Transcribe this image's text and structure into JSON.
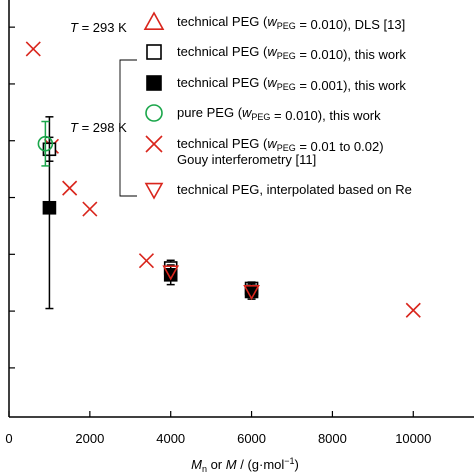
{
  "chart_data": {
    "type": "scatter",
    "xlabel": {
      "prefix": "M",
      "prefix_sub": "n",
      "rest": " or ",
      "italic2": "M",
      "unit": " / (g·mol",
      "unit_sup": "−1",
      "unit_end": ")"
    },
    "xlim": [
      0,
      11700
    ],
    "ylim": [
      0,
      1
    ],
    "x_ticks": [
      0,
      2000,
      4000,
      6000,
      8000,
      10000
    ],
    "x_tick_labels": [
      "0",
      "2000",
      "4000",
      "6000",
      "8000",
      "10000"
    ],
    "y_tick_positions": [
      0.115,
      0.248,
      0.381,
      0.514,
      0.647,
      0.78,
      0.913
    ],
    "grid": false,
    "legend_placement": "top-right",
    "temperature_labels": [
      {
        "var": "T",
        "text": " = 293 K",
        "value": 293
      },
      {
        "var": "T",
        "text": " = 298 K",
        "value": 298
      }
    ],
    "legend": [
      {
        "marker": "triangle-up-open",
        "color": "#d9251c",
        "parts": [
          {
            "t": "technical PEG ("
          },
          {
            "t": "w",
            "i": true
          },
          {
            "t": "PEG",
            "sub": true
          },
          {
            "t": " = 0.010), DLS [13]"
          }
        ]
      },
      {
        "marker": "square-open",
        "color": "#000000",
        "parts": [
          {
            "t": "technical PEG ("
          },
          {
            "t": "w",
            "i": true
          },
          {
            "t": "PEG",
            "sub": true
          },
          {
            "t": " = 0.010), this work"
          }
        ]
      },
      {
        "marker": "square-filled",
        "color": "#000000",
        "parts": [
          {
            "t": "technical PEG ("
          },
          {
            "t": "w",
            "i": true
          },
          {
            "t": "PEG",
            "sub": true
          },
          {
            "t": " = 0.001), this work"
          }
        ]
      },
      {
        "marker": "circle-open",
        "color": "#1aa64a",
        "parts": [
          {
            "t": "pure PEG ("
          },
          {
            "t": "w",
            "i": true
          },
          {
            "t": "PEG",
            "sub": true
          },
          {
            "t": " = 0.010), this work"
          }
        ]
      },
      {
        "marker": "x",
        "color": "#d9251c",
        "parts": [
          {
            "t": "technical PEG ("
          },
          {
            "t": "w",
            "i": true
          },
          {
            "t": "PEG",
            "sub": true
          },
          {
            "t": " = 0.01 to 0.02)"
          }
        ],
        "line2": "Gouy interferometry [11]"
      },
      {
        "marker": "triangle-down-open",
        "color": "#d9251c",
        "parts": [
          {
            "t": "technical PEG, interpolated based on Re"
          }
        ]
      }
    ],
    "series": [
      {
        "marker": "x",
        "color": "#d9251c",
        "points": [
          {
            "x": 600,
            "y": 0.862
          },
          {
            "x": 1050,
            "y": 0.634
          },
          {
            "x": 1500,
            "y": 0.536
          },
          {
            "x": 2000,
            "y": 0.487
          },
          {
            "x": 3400,
            "y": 0.366
          },
          {
            "x": 10000,
            "y": 0.25
          }
        ]
      },
      {
        "marker": "square-open",
        "color": "#000000",
        "points": [
          {
            "x": 1000,
            "y": 0.627,
            "err": 0.028
          },
          {
            "x": 4000,
            "y": 0.349,
            "err": 0.018
          },
          {
            "x": 6000,
            "y": 0.301,
            "err": 0.015
          }
        ]
      },
      {
        "marker": "square-filled",
        "color": "#000000",
        "points": [
          {
            "x": 1000,
            "y": 0.49,
            "err_plus": 0.213,
            "err_minus": 0.236
          },
          {
            "x": 4000,
            "y": 0.333,
            "err": 0.023
          },
          {
            "x": 6000,
            "y": 0.294,
            "err": 0.018
          }
        ]
      },
      {
        "marker": "circle-open",
        "color": "#1aa64a",
        "points": [
          {
            "x": 900,
            "y": 0.64,
            "err": 0.052
          }
        ]
      },
      {
        "marker": "triangle-down-open",
        "color": "#d9251c",
        "points": [
          {
            "x": 4000,
            "y": 0.34
          },
          {
            "x": 6000,
            "y": 0.294
          }
        ]
      }
    ]
  }
}
